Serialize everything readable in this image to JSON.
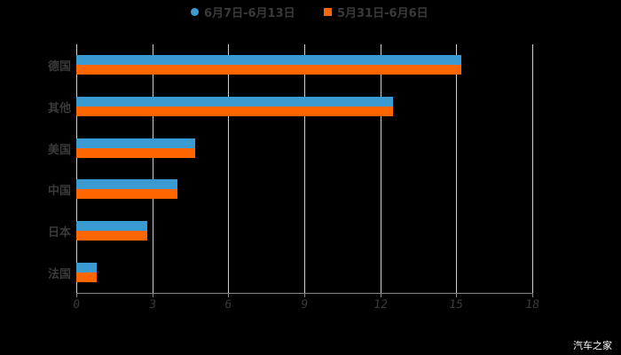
{
  "chart_data": {
    "type": "bar",
    "orientation": "horizontal",
    "title": "",
    "xlabel": "",
    "ylabel": "",
    "categories": [
      "德国",
      "其他",
      "美国",
      "中国",
      "日本",
      "法国"
    ],
    "series": [
      {
        "name": "6月7日-6月13日",
        "color": "#3a9bd2",
        "values": [
          15.2,
          12.5,
          4.7,
          4.0,
          2.8,
          0.8
        ]
      },
      {
        "name": "5月31日-6月6日",
        "color": "#ff6600",
        "values": [
          15.2,
          12.5,
          4.7,
          4.0,
          2.8,
          0.8
        ]
      }
    ],
    "xlim": [
      0,
      18
    ],
    "xticks": [
      "0",
      "3",
      "6",
      "9",
      "12",
      "15",
      "18"
    ],
    "grid": true,
    "legend_position": "top"
  },
  "legend": {
    "series1_label": "6月7日-6月13日",
    "series2_label": "5月31日-6月6日"
  },
  "watermark": "汽车之家"
}
